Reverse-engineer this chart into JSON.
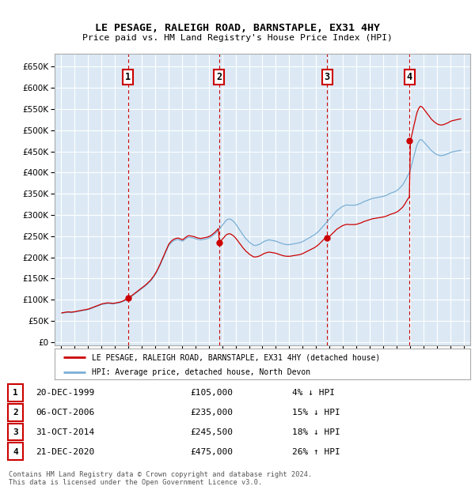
{
  "title": "LE PESAGE, RALEIGH ROAD, BARNSTAPLE, EX31 4HY",
  "subtitle": "Price paid vs. HM Land Registry's House Price Index (HPI)",
  "yticks": [
    0,
    50000,
    100000,
    150000,
    200000,
    250000,
    300000,
    350000,
    400000,
    450000,
    500000,
    550000,
    600000,
    650000
  ],
  "xlim_start": 1994.5,
  "xlim_end": 2025.5,
  "ylim": [
    -8000,
    680000
  ],
  "background_color": "#dce9f5",
  "grid_color": "#ffffff",
  "sale_color": "#cc0000",
  "hpi_color": "#7aafd4",
  "transactions": [
    {
      "num": 1,
      "date_label": "20-DEC-1999",
      "year": 1999.97,
      "price": 105000,
      "pct": "4%",
      "direction": "↓"
    },
    {
      "num": 2,
      "date_label": "06-OCT-2006",
      "year": 2006.77,
      "price": 235000,
      "pct": "15%",
      "direction": "↓"
    },
    {
      "num": 3,
      "date_label": "31-OCT-2014",
      "year": 2014.83,
      "price": 245500,
      "pct": "18%",
      "direction": "↓"
    },
    {
      "num": 4,
      "date_label": "21-DEC-2020",
      "year": 2020.97,
      "price": 475000,
      "pct": "26%",
      "direction": "↑"
    }
  ],
  "legend_sale_label": "LE PESAGE, RALEIGH ROAD, BARNSTAPLE, EX31 4HY (detached house)",
  "legend_hpi_label": "HPI: Average price, detached house, North Devon",
  "footer": "Contains HM Land Registry data © Crown copyright and database right 2024.\nThis data is licensed under the Open Government Licence v3.0.",
  "hpi_index": {
    "years": [
      1995.04,
      1995.13,
      1995.21,
      1995.29,
      1995.38,
      1995.46,
      1995.54,
      1995.63,
      1995.71,
      1995.79,
      1995.88,
      1995.96,
      1996.04,
      1996.13,
      1996.21,
      1996.29,
      1996.38,
      1996.46,
      1996.54,
      1996.63,
      1996.71,
      1996.79,
      1996.88,
      1996.96,
      1997.04,
      1997.13,
      1997.21,
      1997.29,
      1997.38,
      1997.46,
      1997.54,
      1997.63,
      1997.71,
      1997.79,
      1997.88,
      1997.96,
      1998.04,
      1998.13,
      1998.21,
      1998.29,
      1998.38,
      1998.46,
      1998.54,
      1998.63,
      1998.71,
      1998.79,
      1998.88,
      1998.96,
      1999.04,
      1999.13,
      1999.21,
      1999.29,
      1999.38,
      1999.46,
      1999.54,
      1999.63,
      1999.71,
      1999.79,
      1999.88,
      1999.96,
      2000.04,
      2000.13,
      2000.21,
      2000.29,
      2000.38,
      2000.46,
      2000.54,
      2000.63,
      2000.71,
      2000.79,
      2000.88,
      2000.96,
      2001.04,
      2001.13,
      2001.21,
      2001.29,
      2001.38,
      2001.46,
      2001.54,
      2001.63,
      2001.71,
      2001.79,
      2001.88,
      2001.96,
      2002.04,
      2002.13,
      2002.21,
      2002.29,
      2002.38,
      2002.46,
      2002.54,
      2002.63,
      2002.71,
      2002.79,
      2002.88,
      2002.96,
      2003.04,
      2003.13,
      2003.21,
      2003.29,
      2003.38,
      2003.46,
      2003.54,
      2003.63,
      2003.71,
      2003.79,
      2003.88,
      2003.96,
      2004.04,
      2004.13,
      2004.21,
      2004.29,
      2004.38,
      2004.46,
      2004.54,
      2004.63,
      2004.71,
      2004.79,
      2004.88,
      2004.96,
      2005.04,
      2005.13,
      2005.21,
      2005.29,
      2005.38,
      2005.46,
      2005.54,
      2005.63,
      2005.71,
      2005.79,
      2005.88,
      2005.96,
      2006.04,
      2006.13,
      2006.21,
      2006.29,
      2006.38,
      2006.46,
      2006.54,
      2006.63,
      2006.71,
      2006.79,
      2006.88,
      2006.96,
      2007.04,
      2007.13,
      2007.21,
      2007.29,
      2007.38,
      2007.46,
      2007.54,
      2007.63,
      2007.71,
      2007.79,
      2007.88,
      2007.96,
      2008.04,
      2008.13,
      2008.21,
      2008.29,
      2008.38,
      2008.46,
      2008.54,
      2008.63,
      2008.71,
      2008.79,
      2008.88,
      2008.96,
      2009.04,
      2009.13,
      2009.21,
      2009.29,
      2009.38,
      2009.46,
      2009.54,
      2009.63,
      2009.71,
      2009.79,
      2009.88,
      2009.96,
      2010.04,
      2010.13,
      2010.21,
      2010.29,
      2010.38,
      2010.46,
      2010.54,
      2010.63,
      2010.71,
      2010.79,
      2010.88,
      2010.96,
      2011.04,
      2011.13,
      2011.21,
      2011.29,
      2011.38,
      2011.46,
      2011.54,
      2011.63,
      2011.71,
      2011.79,
      2011.88,
      2011.96,
      2012.04,
      2012.13,
      2012.21,
      2012.29,
      2012.38,
      2012.46,
      2012.54,
      2012.63,
      2012.71,
      2012.79,
      2012.88,
      2012.96,
      2013.04,
      2013.13,
      2013.21,
      2013.29,
      2013.38,
      2013.46,
      2013.54,
      2013.63,
      2013.71,
      2013.79,
      2013.88,
      2013.96,
      2014.04,
      2014.13,
      2014.21,
      2014.29,
      2014.38,
      2014.46,
      2014.54,
      2014.63,
      2014.71,
      2014.79,
      2014.88,
      2014.96,
      2015.04,
      2015.13,
      2015.21,
      2015.29,
      2015.38,
      2015.46,
      2015.54,
      2015.63,
      2015.71,
      2015.79,
      2015.88,
      2015.96,
      2016.04,
      2016.13,
      2016.21,
      2016.29,
      2016.38,
      2016.46,
      2016.54,
      2016.63,
      2016.71,
      2016.79,
      2016.88,
      2016.96,
      2017.04,
      2017.13,
      2017.21,
      2017.29,
      2017.38,
      2017.46,
      2017.54,
      2017.63,
      2017.71,
      2017.79,
      2017.88,
      2017.96,
      2018.04,
      2018.13,
      2018.21,
      2018.29,
      2018.38,
      2018.46,
      2018.54,
      2018.63,
      2018.71,
      2018.79,
      2018.88,
      2018.96,
      2019.04,
      2019.13,
      2019.21,
      2019.29,
      2019.38,
      2019.46,
      2019.54,
      2019.63,
      2019.71,
      2019.79,
      2019.88,
      2019.96,
      2020.04,
      2020.13,
      2020.21,
      2020.29,
      2020.38,
      2020.46,
      2020.54,
      2020.63,
      2020.71,
      2020.79,
      2020.88,
      2020.96,
      2021.04,
      2021.13,
      2021.21,
      2021.29,
      2021.38,
      2021.46,
      2021.54,
      2021.63,
      2021.71,
      2021.79,
      2021.88,
      2021.96,
      2022.04,
      2022.13,
      2022.21,
      2022.29,
      2022.38,
      2022.46,
      2022.54,
      2022.63,
      2022.71,
      2022.79,
      2022.88,
      2022.96,
      2023.04,
      2023.13,
      2023.21,
      2023.29,
      2023.38,
      2023.46,
      2023.54,
      2023.63,
      2023.71,
      2023.79,
      2023.88,
      2023.96,
      2024.04,
      2024.13,
      2024.21,
      2024.29,
      2024.38,
      2024.46,
      2024.54,
      2024.63,
      2024.71,
      2024.79
    ],
    "values": [
      68000,
      68500,
      69000,
      69500,
      69800,
      70000,
      70200,
      70000,
      69500,
      69800,
      70000,
      70500,
      71000,
      71500,
      72000,
      72500,
      73000,
      73500,
      74000,
      74500,
      75000,
      75200,
      76000,
      76500,
      77000,
      78000,
      79000,
      80000,
      81000,
      82000,
      83000,
      84000,
      85000,
      86000,
      87000,
      88000,
      89000,
      89500,
      90000,
      90500,
      91000,
      91200,
      91000,
      90800,
      90500,
      90200,
      90000,
      90500,
      91000,
      91500,
      92000,
      92500,
      93000,
      94000,
      95000,
      96000,
      97500,
      99000,
      100500,
      102000,
      103500,
      105000,
      107000,
      109000,
      111000,
      113000,
      115000,
      117000,
      119000,
      121000,
      123000,
      125000,
      127000,
      129000,
      131000,
      133000,
      135500,
      138000,
      140500,
      143000,
      146000,
      149500,
      153000,
      157000,
      161000,
      166000,
      171000,
      176000,
      182000,
      188000,
      194000,
      200000,
      206000,
      212000,
      218000,
      224000,
      229000,
      232000,
      235000,
      237000,
      239000,
      240000,
      241000,
      241500,
      242000,
      241000,
      240000,
      239000,
      238000,
      240000,
      242000,
      244000,
      246000,
      247000,
      247500,
      247000,
      246500,
      246000,
      245500,
      244500,
      243500,
      242500,
      242000,
      241500,
      241000,
      241500,
      242000,
      242500,
      243000,
      243500,
      244000,
      245000,
      246000,
      247500,
      249000,
      251000,
      253000,
      255500,
      258000,
      261000,
      264000,
      267000,
      270000,
      273500,
      277000,
      280500,
      284000,
      287000,
      289000,
      290000,
      290500,
      289500,
      288000,
      286000,
      283500,
      280500,
      277000,
      273000,
      269000,
      265000,
      261000,
      257000,
      253000,
      249500,
      246000,
      243000,
      240500,
      238000,
      235000,
      233000,
      231000,
      229500,
      228000,
      228000,
      228500,
      229000,
      230000,
      231000,
      232500,
      234000,
      236000,
      237500,
      238500,
      239500,
      240500,
      241000,
      241000,
      240500,
      240000,
      239500,
      239000,
      238500,
      237500,
      236500,
      235500,
      234500,
      233500,
      232500,
      231500,
      231000,
      230500,
      230000,
      230000,
      230000,
      230000,
      230500,
      231000,
      231500,
      232000,
      232500,
      233000,
      233500,
      234000,
      234500,
      235500,
      236500,
      238000,
      239500,
      241000,
      242500,
      244000,
      245500,
      247000,
      248500,
      250000,
      251500,
      253000,
      255000,
      257000,
      259500,
      262000,
      265000,
      268000,
      271000,
      274000,
      277000,
      280000,
      283000,
      286000,
      289000,
      292000,
      295000,
      298000,
      301000,
      304000,
      307000,
      310000,
      312000,
      314000,
      316000,
      318000,
      319500,
      321000,
      322000,
      323000,
      323500,
      323500,
      323000,
      323000,
      323000,
      323000,
      323000,
      323000,
      323500,
      324000,
      325000,
      326000,
      327000,
      328000,
      329500,
      331000,
      332000,
      333000,
      334000,
      335000,
      336000,
      337000,
      338000,
      339000,
      339500,
      340000,
      340500,
      341000,
      341500,
      342000,
      342500,
      343000,
      343500,
      344000,
      345000,
      346000,
      347000,
      348500,
      350000,
      351000,
      352000,
      353000,
      354000,
      355000,
      356500,
      358000,
      360000,
      362500,
      365000,
      368000,
      371000,
      375000,
      380000,
      385000,
      390000,
      395000,
      400000,
      408000,
      418000,
      428000,
      438000,
      448000,
      458000,
      466000,
      472000,
      476000,
      478000,
      477000,
      475000,
      472000,
      469000,
      466000,
      463000,
      460000,
      457000,
      454000,
      451000,
      449000,
      447000,
      445000,
      443500,
      442000,
      441000,
      440500,
      440000,
      440000,
      440500,
      441000,
      442000,
      443000,
      444000,
      445000,
      446500,
      447500,
      448500,
      449000,
      449500,
      450000,
      450500,
      451000,
      451500,
      452000,
      452500
    ]
  }
}
